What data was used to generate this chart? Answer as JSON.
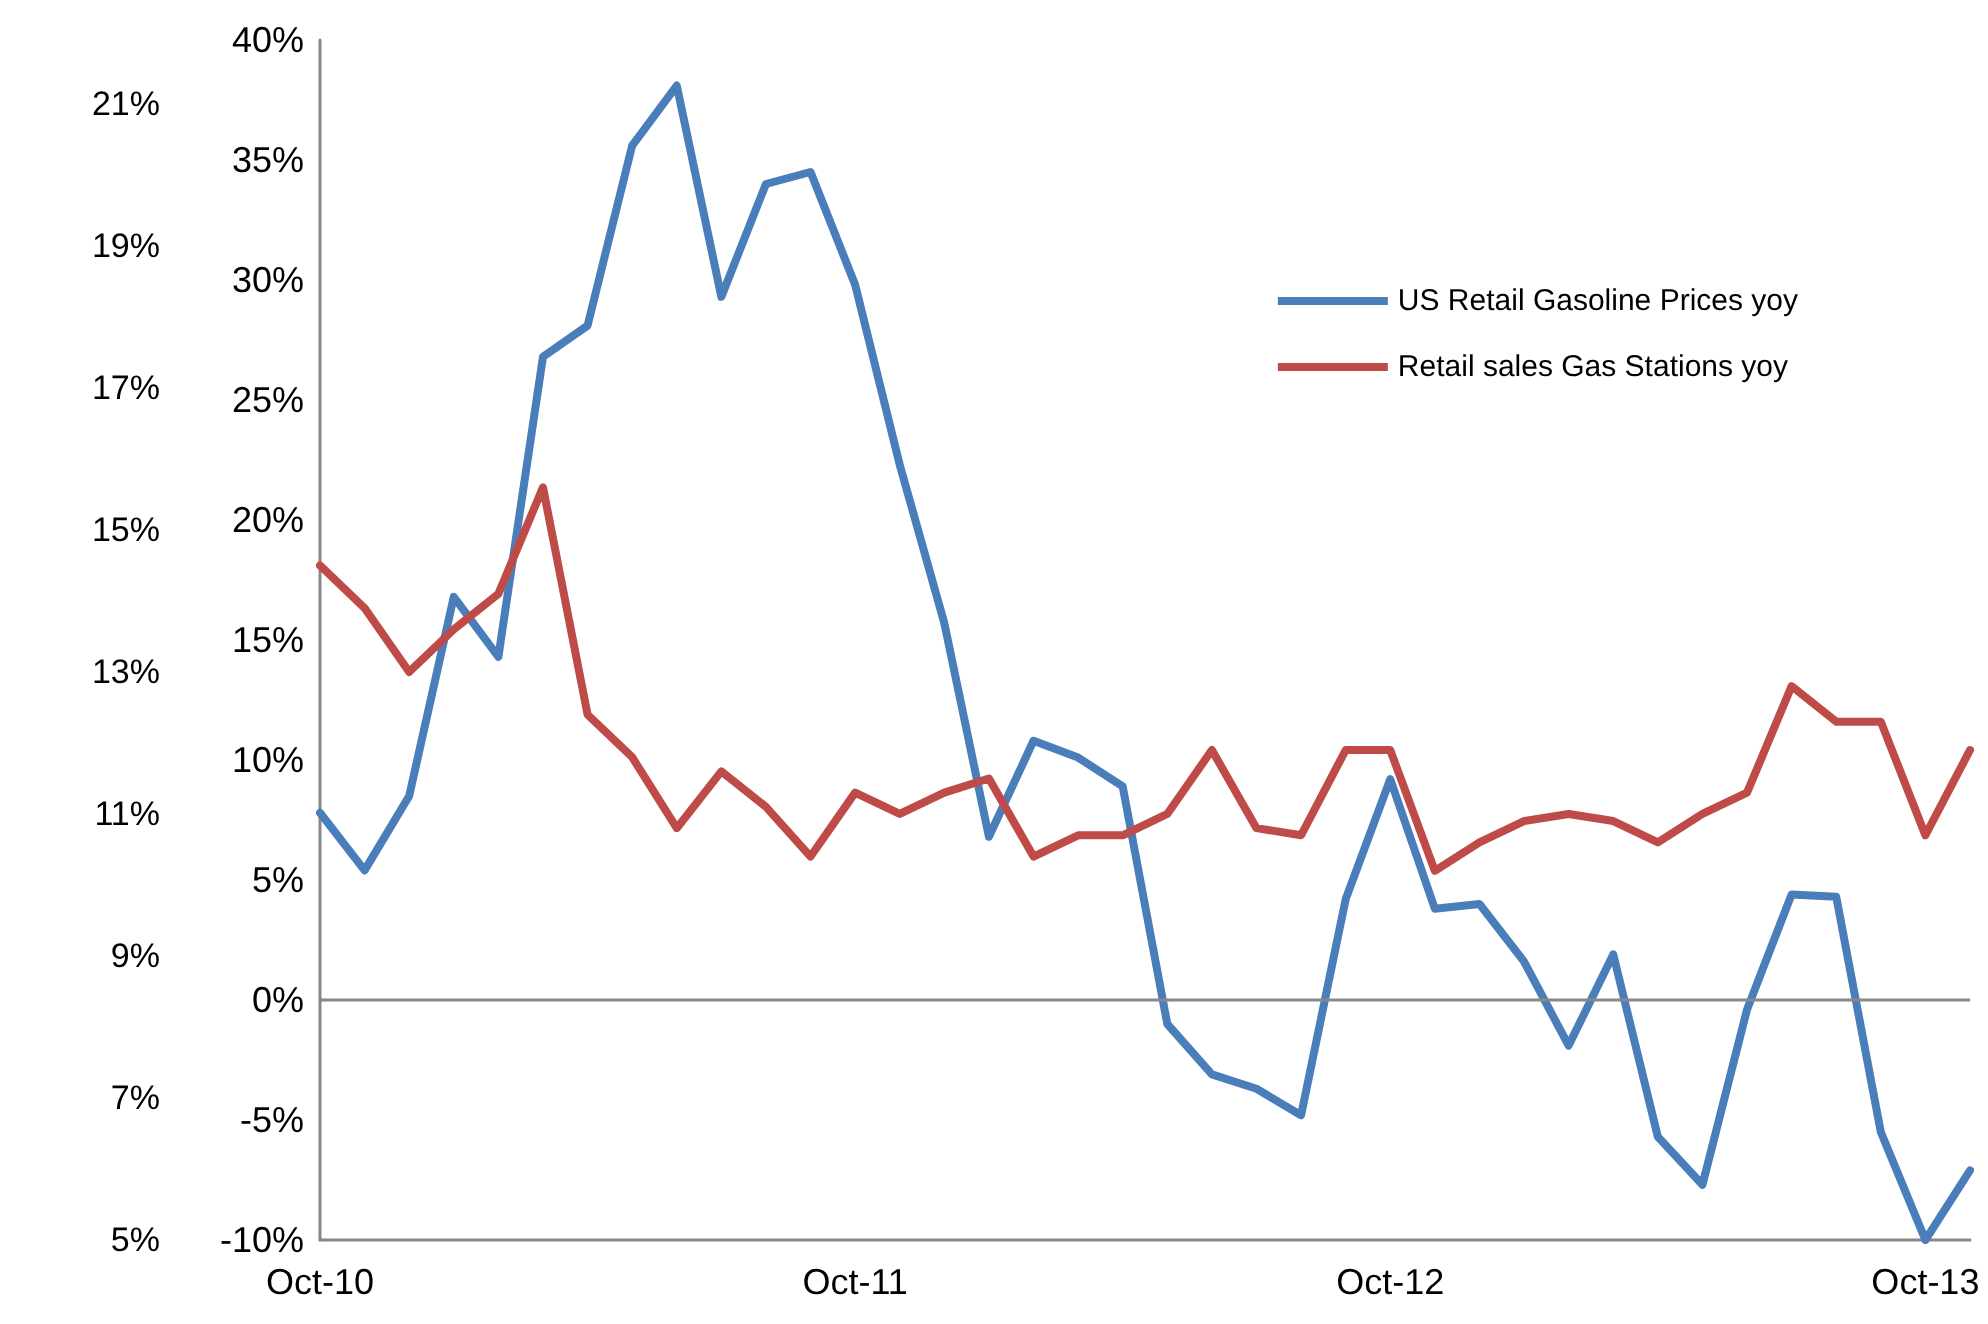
{
  "chart_data": {
    "type": "line",
    "categories": [
      "Oct-10",
      null,
      null,
      null,
      null,
      null,
      null,
      null,
      null,
      null,
      null,
      null,
      "Oct-11",
      null,
      null,
      null,
      null,
      null,
      null,
      null,
      null,
      null,
      null,
      null,
      "Oct-12",
      null,
      null,
      null,
      null,
      null,
      null,
      null,
      null,
      null,
      null,
      null,
      "Oct-13",
      null
    ],
    "series": [
      {
        "name": "US Retail Gasoline Prices yoy",
        "color": "#4a7ebb",
        "values": [
          7.8,
          5.4,
          8.5,
          16.8,
          14.3,
          26.8,
          28.1,
          35.6,
          38.1,
          29.3,
          34.0,
          34.5,
          29.8,
          22.3,
          15.7,
          6.8,
          10.8,
          10.1,
          8.9,
          -1.0,
          -3.1,
          -3.7,
          -4.8,
          4.2,
          9.2,
          3.8,
          4.0,
          1.6,
          -1.9,
          1.9,
          -5.7,
          -7.7,
          -0.4,
          4.4,
          4.3,
          -5.5,
          -10.0,
          -7.1
        ]
      },
      {
        "name": "Retail sales Gas Stations yoy",
        "color": "#be4b48",
        "axis": "y2",
        "values": [
          14.5,
          13.9,
          13.0,
          13.6,
          14.1,
          15.6,
          12.4,
          11.8,
          10.8,
          11.6,
          11.1,
          10.4,
          11.3,
          11.0,
          11.3,
          11.5,
          10.4,
          10.7,
          10.7,
          11.0,
          11.9,
          10.8,
          10.7,
          11.9,
          11.9,
          10.2,
          10.6,
          10.9,
          11.0,
          10.9,
          10.6,
          11.0,
          11.3,
          12.8,
          12.3,
          12.3,
          10.7,
          11.9
        ]
      }
    ],
    "ylim": [
      -10,
      40
    ],
    "yticks": [
      {
        "value": -10,
        "label": "-10%"
      },
      {
        "value": -5,
        "label": "-5%"
      },
      {
        "value": 0,
        "label": "0%"
      },
      {
        "value": 5,
        "label": "5%"
      },
      {
        "value": 10,
        "label": "10%"
      },
      {
        "value": 15,
        "label": "15%"
      },
      {
        "value": 20,
        "label": "20%"
      },
      {
        "value": 25,
        "label": "25%"
      },
      {
        "value": 30,
        "label": "30%"
      },
      {
        "value": 35,
        "label": "35%"
      },
      {
        "value": 40,
        "label": "40%"
      }
    ],
    "y2lim": [
      5,
      21.9
    ],
    "y2ticks": [
      {
        "value": 5,
        "label": "5%"
      },
      {
        "value": 7,
        "label": "7%"
      },
      {
        "value": 9,
        "label": "9%"
      },
      {
        "value": 11,
        "label": "11%"
      },
      {
        "value": 13,
        "label": "13%"
      },
      {
        "value": 15,
        "label": "15%"
      },
      {
        "value": 17,
        "label": "17%"
      },
      {
        "value": 19,
        "label": "19%"
      },
      {
        "value": 21,
        "label": "21%"
      }
    ],
    "ref_lines": [
      {
        "axis": "y",
        "value": 0,
        "label": null,
        "color": "#888888"
      }
    ],
    "legend": "top right",
    "grid": false,
    "marker": "none",
    "line_style": "solid"
  }
}
